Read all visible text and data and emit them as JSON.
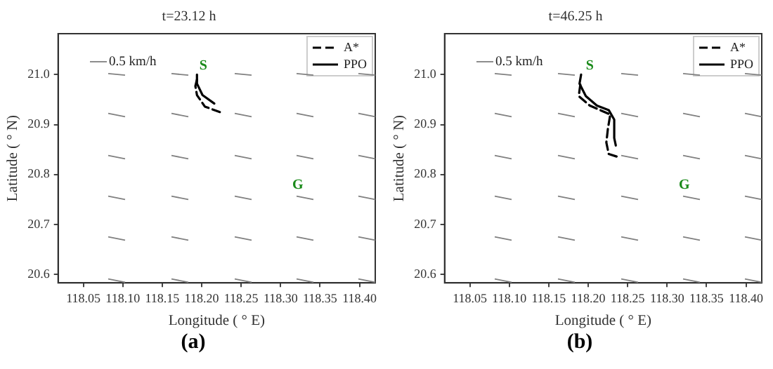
{
  "chart_data": [
    {
      "type": "line",
      "title": "t=23.12 h",
      "xlabel": "Longitude ( ° E)",
      "ylabel": "Latitude ( ° N)",
      "xlim": [
        118.018,
        118.42
      ],
      "ylim": [
        20.583,
        21.082
      ],
      "xticks": [
        118.05,
        {
          "value": 118.1,
          "label": "118.10"
        },
        118.15,
        {
          "value": 118.2,
          "label": "118.20"
        },
        118.25,
        {
          "value": 118.3,
          "label": "118.30"
        },
        118.35,
        {
          "value": 118.4,
          "label": "118.40"
        }
      ],
      "yticks": [
        20.6,
        20.7,
        20.8,
        20.9,
        {
          "value": 21,
          "label": "21.0"
        }
      ],
      "legend": "top right",
      "grid": false,
      "marker": "none",
      "series": [
        {
          "name": "A*",
          "color": "#000000",
          "line_style": "dashed",
          "x": [
            118.194,
            118.192,
            118.194,
            118.204,
            118.223
          ],
          "values": [
            20.99,
            20.977,
            20.959,
            20.936,
            20.925
          ]
        },
        {
          "name": "PPO",
          "color": "#000000",
          "line_style": "solid",
          "x": [
            118.194,
            118.194,
            118.201,
            118.216
          ],
          "values": [
            21.0,
            20.982,
            20.959,
            20.942
          ]
        }
      ],
      "annotations": [
        "0.5 km/h",
        "S",
        "G",
        "(a)"
      ]
    },
    {
      "type": "line",
      "title": "t=46.25 h",
      "xlabel": "Longitude ( ° E)",
      "ylabel": "Latitude ( ° N)",
      "xlim": [
        118.018,
        118.42
      ],
      "ylim": [
        20.583,
        21.082
      ],
      "xticks": [
        118.05,
        {
          "value": 118.1,
          "label": "118.10"
        },
        118.15,
        {
          "value": 118.2,
          "label": "118.20"
        },
        118.25,
        {
          "value": 118.3,
          "label": "118.30"
        },
        118.35,
        {
          "value": 118.4,
          "label": "118.40"
        }
      ],
      "yticks": [
        20.6,
        20.7,
        20.8,
        20.9,
        {
          "value": 21,
          "label": "21.0"
        }
      ],
      "legend": "top right",
      "grid": false,
      "marker": "none",
      "series": [
        {
          "name": "A*",
          "color": "#000000",
          "line_style": "dashed",
          "x": [
            118.19,
            118.188,
            118.202,
            118.228,
            118.225,
            118.223,
            118.226,
            118.236
          ],
          "values": [
            20.98,
            20.957,
            20.938,
            20.92,
            20.892,
            20.864,
            20.841,
            20.836
          ]
        },
        {
          "name": "PPO",
          "color": "#000000",
          "line_style": "solid",
          "x": [
            118.191,
            118.189,
            118.197,
            118.211,
            118.226,
            118.233,
            118.233,
            118.235
          ],
          "values": [
            21.0,
            20.982,
            20.957,
            20.938,
            20.929,
            20.91,
            20.873,
            20.858
          ]
        }
      ],
      "annotations": [
        "0.5 km/h",
        "S",
        "G",
        "(b)"
      ]
    }
  ]
}
